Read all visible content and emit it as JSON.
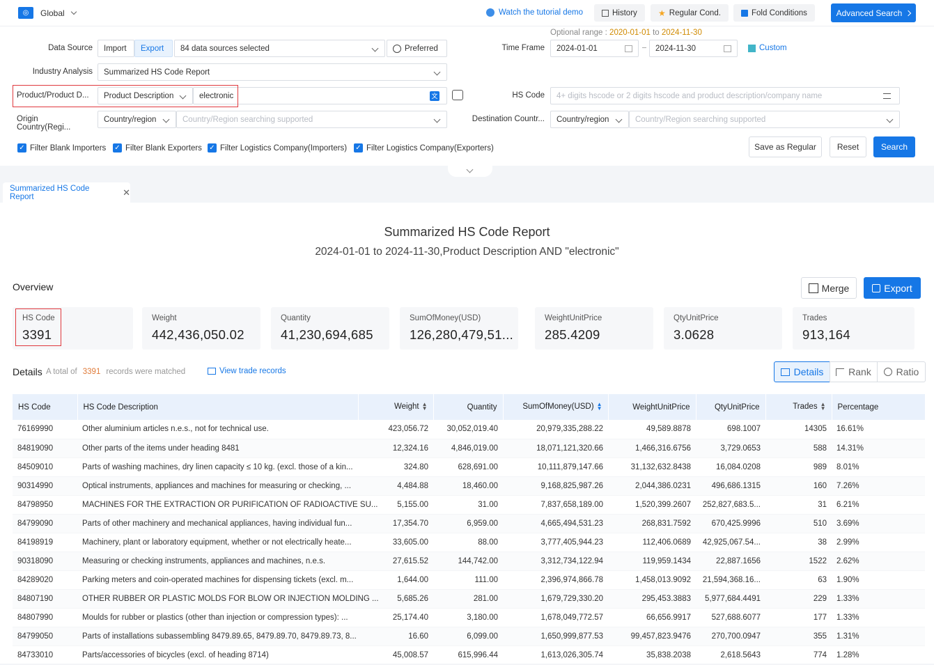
{
  "topbar": {
    "scope": "Global",
    "tutorial": "Watch the tutorial demo",
    "history": "History",
    "regular": "Regular Cond.",
    "fold": "Fold Conditions",
    "advanced": "Advanced Search"
  },
  "form": {
    "optional_range_label": "Optional range :",
    "optional_range_from": "2020-01-01",
    "optional_range_to_word": "to",
    "optional_range_to": "2024-11-30",
    "data_source_label": "Data Source",
    "import_label": "Import",
    "export_label": "Export",
    "sources_selected": "84 data sources selected",
    "preferred": "Preferred",
    "time_frame_label": "Time Frame",
    "date_from": "2024-01-01",
    "date_to": "2024-11-30",
    "custom": "Custom",
    "industry_label": "Industry Analysis",
    "industry_value": "Summarized HS Code Report",
    "product_label": "Product/Product D...",
    "product_type": "Product Description",
    "product_value": "electronic",
    "hs_label": "HS Code",
    "hs_placeholder": "4+ digits hscode or 2 digits hscode and product description/company name",
    "origin_label": "Origin Country(Regi...",
    "origin_type": "Country/region",
    "origin_placeholder": "Country/Region searching supported",
    "dest_label": "Destination Countr...",
    "dest_type": "Country/region",
    "dest_placeholder": "Country/Region searching supported",
    "filters": [
      "Filter Blank Importers",
      "Filter Blank Exporters",
      "Filter Logistics Company(Importers)",
      "Filter Logistics Company(Exporters)"
    ],
    "save_regular": "Save as Regular",
    "reset": "Reset",
    "search": "Search"
  },
  "tab": {
    "label": "Summarized HS Code Report"
  },
  "report": {
    "title": "Summarized HS Code Report",
    "subtitle": "2024-01-01 to 2024-11-30,Product Description AND \"electronic\"",
    "overview": "Overview",
    "merge": "Merge",
    "export": "Export",
    "stats": [
      {
        "title": "HS Code",
        "value": "3391"
      },
      {
        "title": "Weight",
        "value": "442,436,050.02"
      },
      {
        "title": "Quantity",
        "value": "41,230,694,685"
      },
      {
        "title": "SumOfMoney(USD)",
        "value": "126,280,479,51..."
      },
      {
        "title": "WeightUnitPrice",
        "value": "285.4209"
      },
      {
        "title": "QtyUnitPrice",
        "value": "3.0628"
      },
      {
        "title": "Trades",
        "value": "913,164"
      }
    ],
    "details": "Details",
    "total_of": "A total of",
    "total_count": "3391",
    "matched": "records were matched",
    "view_trade": "View trade records",
    "view_details": "Details",
    "view_rank": "Rank",
    "view_ratio": "Ratio"
  },
  "table": {
    "headers": [
      "HS Code",
      "HS Code Description",
      "Weight",
      "Quantity",
      "SumOfMoney(USD)",
      "WeightUnitPrice",
      "QtyUnitPrice",
      "Trades",
      "Percentage"
    ],
    "rows": [
      [
        "76169990",
        "Other aluminium articles n.e.s., not for technical use.",
        "423,056.72",
        "30,052,019.40",
        "20,979,335,288.22",
        "49,589.8878",
        "698.1007",
        "14305",
        "16.61%"
      ],
      [
        "84819090",
        "Other parts of the items under heading 8481",
        "12,324.16",
        "4,846,019.00",
        "18,071,121,320.66",
        "1,466,316.6756",
        "3,729.0653",
        "588",
        "14.31%"
      ],
      [
        "84509010",
        "Parts of washing machines, dry linen capacity ≤ 10 kg. (excl. those of a kin...",
        "324.80",
        "628,691.00",
        "10,111,879,147.66",
        "31,132,632.8438",
        "16,084.0208",
        "989",
        "8.01%"
      ],
      [
        "90314990",
        "Optical instruments, appliances and machines for measuring or checking, ...",
        "4,484.88",
        "18,460.00",
        "9,168,825,987.26",
        "2,044,386.0231",
        "496,686.1315",
        "160",
        "7.26%"
      ],
      [
        "84798950",
        "MACHINES FOR THE EXTRACTION OR PURIFICATION OF RADIOACTIVE SU...",
        "5,155.00",
        "31.00",
        "7,837,658,189.00",
        "1,520,399.2607",
        "252,827,683.5...",
        "31",
        "6.21%"
      ],
      [
        "84799090",
        "Parts of other machinery and mechanical appliances, having individual fun...",
        "17,354.70",
        "6,959.00",
        "4,665,494,531.23",
        "268,831.7592",
        "670,425.9996",
        "510",
        "3.69%"
      ],
      [
        "84198919",
        "Machinery, plant or laboratory equipment, whether or not electrically heate...",
        "33,605.00",
        "88.00",
        "3,777,405,944.23",
        "112,406.0689",
        "42,925,067.54...",
        "38",
        "2.99%"
      ],
      [
        "90318090",
        "Measuring or checking instruments, appliances and machines, n.e.s.",
        "27,615.52",
        "144,742.00",
        "3,312,734,122.94",
        "119,959.1434",
        "22,887.1656",
        "1522",
        "2.62%"
      ],
      [
        "84289020",
        "Parking meters and coin-operated machines for dispensing tickets (excl. m...",
        "1,644.00",
        "111.00",
        "2,396,974,866.78",
        "1,458,013.9092",
        "21,594,368.16...",
        "63",
        "1.90%"
      ],
      [
        "84807190",
        "OTHER RUBBER OR PLASTIC MOLDS FOR BLOW OR INJECTION MOLDING ...",
        "5,685.26",
        "281.00",
        "1,679,729,330.20",
        "295,453.3883",
        "5,977,684.4491",
        "229",
        "1.33%"
      ],
      [
        "84807990",
        "Moulds for rubber or plastics (other than injection or compression types): ...",
        "25,174.40",
        "3,180.00",
        "1,678,049,772.57",
        "66,656.9917",
        "527,688.6077",
        "177",
        "1.33%"
      ],
      [
        "84799050",
        "Parts of installations subassembling 8479.89.65, 8479.89.70, 8479.89.73, 8...",
        "16.60",
        "6,099.00",
        "1,650,999,877.53",
        "99,457,823.9476",
        "270,700.0947",
        "355",
        "1.31%"
      ],
      [
        "84733010",
        "Parts/accessories of bicycles (excl. of heading 8714)",
        "45,008.57",
        "615,996.44",
        "1,613,026,305.74",
        "35,838.2038",
        "2,618.5643",
        "774",
        "1.28%"
      ]
    ]
  }
}
